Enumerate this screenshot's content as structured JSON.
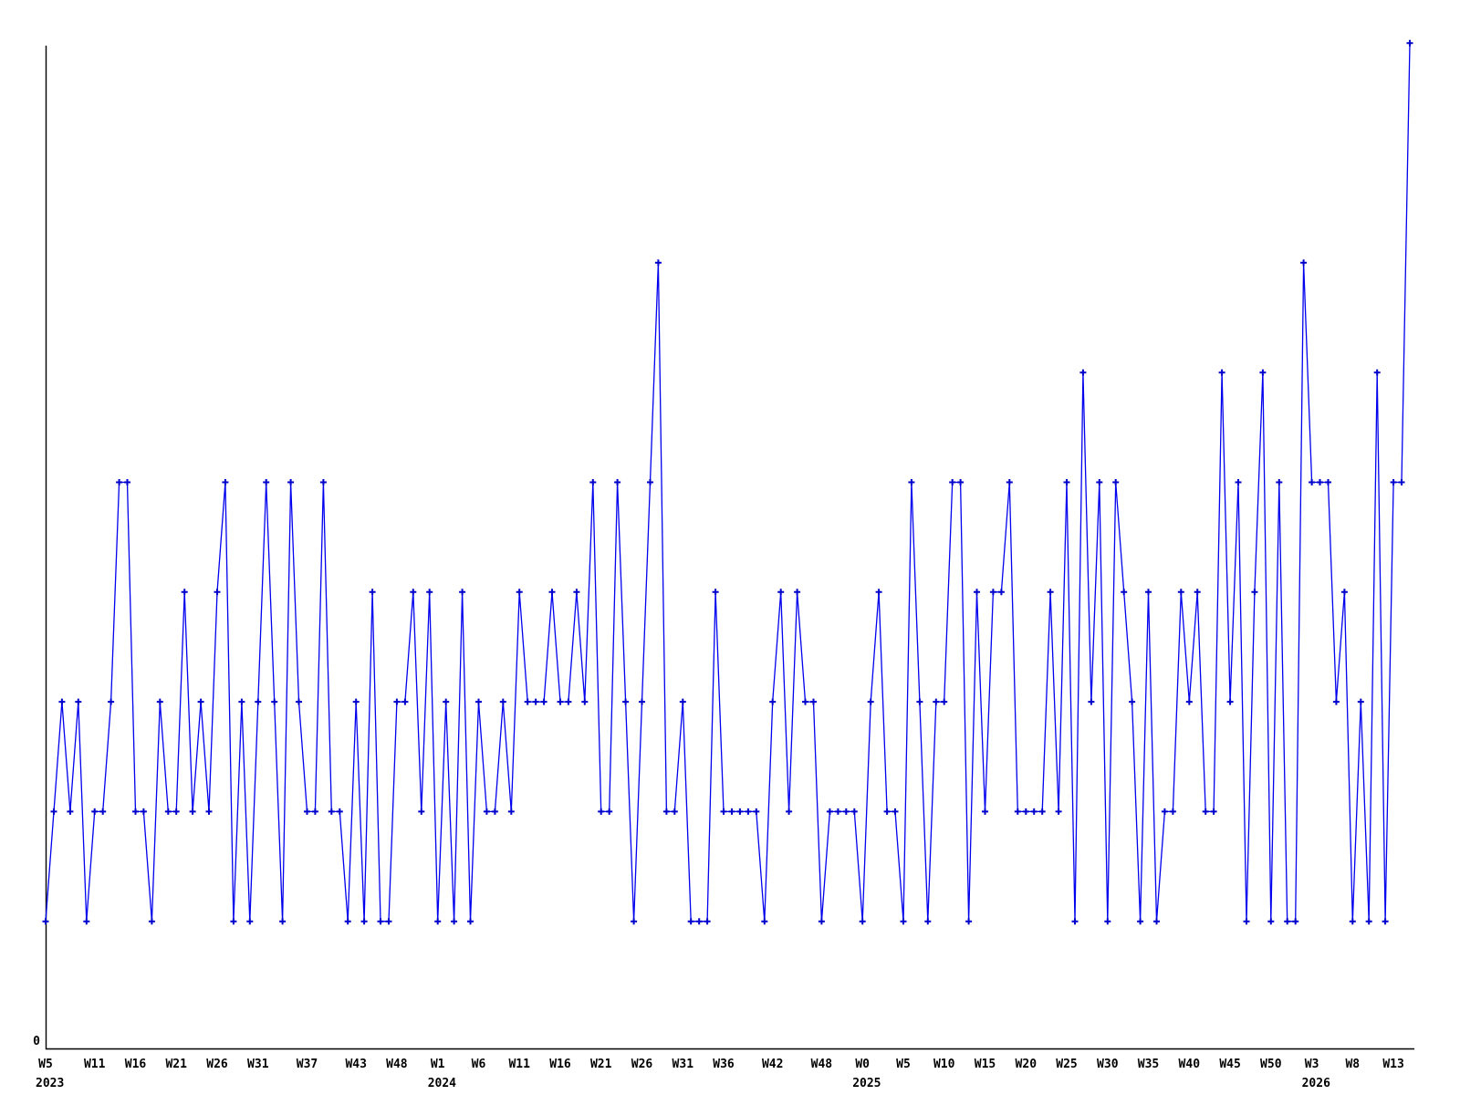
{
  "page": {
    "background_color": "#ffffff"
  },
  "chart_data": {
    "type": "line",
    "title": "",
    "xlabel": "",
    "ylabel": "",
    "legend": null,
    "grid": false,
    "line_color": "#0000ee",
    "marker_color": "#0000cc",
    "marker_style": "plus",
    "axis_color": "#000000",
    "y_axis": {
      "zero_label": "0",
      "ylim": [
        0,
        9
      ]
    },
    "x_unit": "ISO week",
    "series_start": {
      "year": 2023,
      "week": 5
    },
    "year_ranges": [
      {
        "year": 2023,
        "first_week": 5,
        "last_week": 52
      },
      {
        "year": 2024,
        "first_week": 1,
        "last_week": 52
      },
      {
        "year": 2025,
        "first_week": 0,
        "last_week": 52
      },
      {
        "year": 2026,
        "first_week": 1,
        "last_week": 15
      }
    ],
    "values": [
      1,
      2,
      3,
      2,
      3,
      1,
      2,
      2,
      3,
      5,
      5,
      2,
      2,
      1,
      3,
      2,
      2,
      4,
      2,
      3,
      2,
      4,
      5,
      1,
      3,
      1,
      3,
      5,
      3,
      1,
      5,
      3,
      2,
      2,
      5,
      2,
      2,
      1,
      3,
      1,
      4,
      1,
      1,
      3,
      3,
      4,
      2,
      4,
      1,
      3,
      1,
      4,
      1,
      3,
      2,
      2,
      3,
      2,
      4,
      3,
      3,
      3,
      4,
      3,
      3,
      4,
      3,
      5,
      2,
      2,
      5,
      3,
      1,
      3,
      5,
      7,
      2,
      2,
      3,
      1,
      1,
      1,
      4,
      2,
      2,
      2,
      2,
      2,
      1,
      3,
      4,
      2,
      4,
      3,
      3,
      1,
      2,
      2,
      2,
      2,
      1,
      3,
      4,
      2,
      2,
      1,
      5,
      3,
      1,
      3,
      3,
      5,
      5,
      1,
      4,
      2,
      4,
      4,
      5,
      2,
      2,
      2,
      2,
      4,
      2,
      5,
      1,
      6,
      3,
      5,
      1,
      5,
      4,
      3,
      1,
      4,
      1,
      2,
      2,
      4,
      3,
      4,
      2,
      2,
      6,
      3,
      5,
      1,
      4,
      6,
      1,
      5,
      1,
      1,
      7,
      5,
      5,
      5,
      3,
      4,
      1,
      3,
      1,
      6,
      1,
      5,
      5,
      9
    ],
    "x_ticks": [
      {
        "label": "W5",
        "series_index": 0,
        "year_label": "2023"
      },
      {
        "label": "W11",
        "series_index": 6,
        "year_label": ""
      },
      {
        "label": "W16",
        "series_index": 11,
        "year_label": ""
      },
      {
        "label": "W21",
        "series_index": 16,
        "year_label": ""
      },
      {
        "label": "W26",
        "series_index": 21,
        "year_label": ""
      },
      {
        "label": "W31",
        "series_index": 26,
        "year_label": ""
      },
      {
        "label": "W37",
        "series_index": 32,
        "year_label": ""
      },
      {
        "label": "W43",
        "series_index": 38,
        "year_label": ""
      },
      {
        "label": "W48",
        "series_index": 43,
        "year_label": ""
      },
      {
        "label": "W1",
        "series_index": 48,
        "year_label": "2024"
      },
      {
        "label": "W6",
        "series_index": 53,
        "year_label": ""
      },
      {
        "label": "W11",
        "series_index": 58,
        "year_label": ""
      },
      {
        "label": "W16",
        "series_index": 63,
        "year_label": ""
      },
      {
        "label": "W21",
        "series_index": 68,
        "year_label": ""
      },
      {
        "label": "W26",
        "series_index": 73,
        "year_label": ""
      },
      {
        "label": "W31",
        "series_index": 78,
        "year_label": ""
      },
      {
        "label": "W36",
        "series_index": 83,
        "year_label": ""
      },
      {
        "label": "W42",
        "series_index": 89,
        "year_label": ""
      },
      {
        "label": "W48",
        "series_index": 95,
        "year_label": ""
      },
      {
        "label": "W0",
        "series_index": 100,
        "year_label": "2025"
      },
      {
        "label": "W5",
        "series_index": 105,
        "year_label": ""
      },
      {
        "label": "W10",
        "series_index": 110,
        "year_label": ""
      },
      {
        "label": "W15",
        "series_index": 115,
        "year_label": ""
      },
      {
        "label": "W20",
        "series_index": 120,
        "year_label": ""
      },
      {
        "label": "W25",
        "series_index": 125,
        "year_label": ""
      },
      {
        "label": "W30",
        "series_index": 130,
        "year_label": ""
      },
      {
        "label": "W35",
        "series_index": 135,
        "year_label": ""
      },
      {
        "label": "W40",
        "series_index": 140,
        "year_label": ""
      },
      {
        "label": "W45",
        "series_index": 145,
        "year_label": ""
      },
      {
        "label": "W50",
        "series_index": 150,
        "year_label": ""
      },
      {
        "label": "W3",
        "series_index": 155,
        "year_label": "2026"
      },
      {
        "label": "W8",
        "series_index": 160,
        "year_label": ""
      },
      {
        "label": "W13",
        "series_index": 165,
        "year_label": ""
      }
    ]
  }
}
